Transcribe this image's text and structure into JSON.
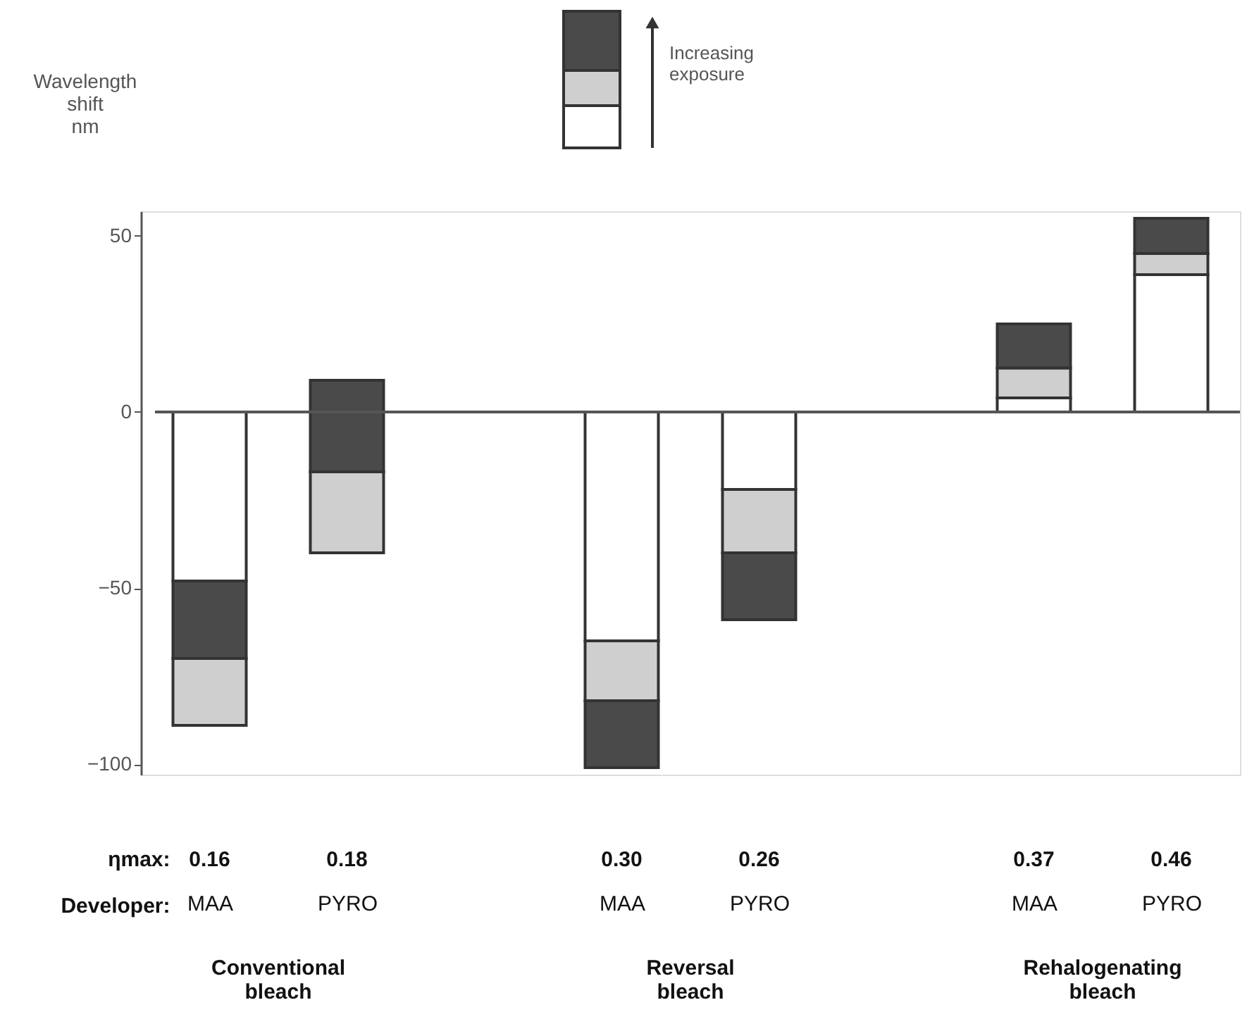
{
  "chart_data": {
    "type": "bar",
    "ylabel": "Wavelength\nshift\nnm",
    "categories": [
      "MAA",
      "PYRO",
      null,
      "MAA",
      "PYRO",
      null,
      "MAA",
      "PYRO"
    ],
    "series": [
      {
        "color": "#ffffff",
        "base": [
          0,
          null,
          null,
          0,
          0,
          null,
          0,
          0
        ],
        "values": [
          -48,
          null,
          null,
          -65,
          -22,
          null,
          4,
          39
        ]
      },
      {
        "color": "#cfcfcf",
        "base": [
          -70,
          -40,
          null,
          -65,
          -22,
          null,
          4,
          39
        ],
        "values": [
          -19,
          23,
          null,
          -17,
          -18,
          null,
          8.5,
          6
        ]
      },
      {
        "color": "#4a4a4a",
        "base": [
          -48,
          -17,
          null,
          -82,
          -40,
          null,
          12.5,
          45
        ],
        "values": [
          -22,
          26,
          null,
          -19,
          -19,
          null,
          12.5,
          10
        ]
      }
    ],
    "ylim": [
      -103,
      57
    ],
    "yticks": [
      -100,
      -50,
      0,
      50
    ],
    "ref_lines": [
      {
        "axis": "y",
        "value": 0,
        "color": "#555555"
      }
    ],
    "grid": false,
    "legend": false,
    "annotations": [
      "Increasing\nexposure",
      "ηmax:",
      "0.16",
      "0.18",
      "0.30",
      "0.26",
      "0.37",
      "0.46",
      "Developer:",
      "Conventional\nbleach",
      "Reversal\nbleach",
      "Rehalogenating\nbleach"
    ]
  }
}
